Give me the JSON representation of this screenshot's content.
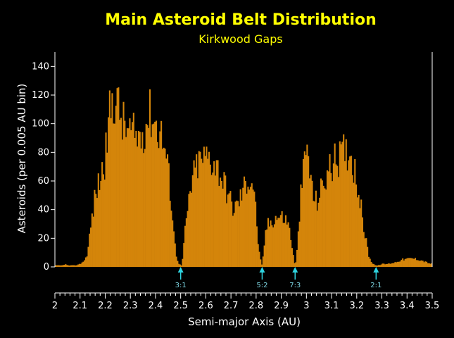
{
  "colors": {
    "background": "#000000",
    "bar": "#d4850a",
    "axis": "#ffffff",
    "title": "#ffff00",
    "gap_marker": "#2fd4e0"
  },
  "chart_data": {
    "type": "bar",
    "title": "Main Asteroid Belt Distribution",
    "subtitle": "Kirkwood Gaps",
    "xlabel": "Semi-major Axis (AU)",
    "ylabel": "Asteroids (per 0.005 AU bin)",
    "xlim": [
      2.0,
      3.5
    ],
    "ylim": [
      0,
      150
    ],
    "bin_width": 0.005,
    "grid": false,
    "x_ticks": [
      "2",
      "2.1",
      "2.2",
      "2.3",
      "2.4",
      "2.5",
      "2.6",
      "2.7",
      "2.8",
      "2.9",
      "3",
      "3.1",
      "3.2",
      "3.3",
      "3.4",
      "3.5"
    ],
    "y_ticks": [
      "0",
      "20",
      "40",
      "60",
      "80",
      "100",
      "120",
      "140"
    ],
    "profile": [
      [
        2.0,
        1
      ],
      [
        2.03,
        1
      ],
      [
        2.04,
        2
      ],
      [
        2.05,
        1
      ],
      [
        2.08,
        1
      ],
      [
        2.1,
        2
      ],
      [
        2.12,
        5
      ],
      [
        2.13,
        10
      ],
      [
        2.14,
        25
      ],
      [
        2.16,
        50
      ],
      [
        2.18,
        62
      ],
      [
        2.2,
        75
      ],
      [
        2.21,
        95
      ],
      [
        2.22,
        110
      ],
      [
        2.235,
        120
      ],
      [
        2.25,
        112
      ],
      [
        2.27,
        100
      ],
      [
        2.29,
        95
      ],
      [
        2.31,
        92
      ],
      [
        2.33,
        90
      ],
      [
        2.35,
        95
      ],
      [
        2.37,
        105
      ],
      [
        2.385,
        108
      ],
      [
        2.4,
        100
      ],
      [
        2.42,
        95
      ],
      [
        2.44,
        80
      ],
      [
        2.455,
        60
      ],
      [
        2.47,
        30
      ],
      [
        2.48,
        10
      ],
      [
        2.49,
        3
      ],
      [
        2.5,
        1
      ],
      [
        2.505,
        1
      ],
      [
        2.51,
        10
      ],
      [
        2.52,
        30
      ],
      [
        2.54,
        55
      ],
      [
        2.56,
        70
      ],
      [
        2.58,
        75
      ],
      [
        2.61,
        77
      ],
      [
        2.64,
        72
      ],
      [
        2.67,
        60
      ],
      [
        2.69,
        50
      ],
      [
        2.71,
        40
      ],
      [
        2.73,
        45
      ],
      [
        2.75,
        55
      ],
      [
        2.77,
        62
      ],
      [
        2.79,
        58
      ],
      [
        2.8,
        35
      ],
      [
        2.81,
        12
      ],
      [
        2.82,
        2
      ],
      [
        2.825,
        1
      ],
      [
        2.83,
        12
      ],
      [
        2.84,
        28
      ],
      [
        2.86,
        32
      ],
      [
        2.88,
        35
      ],
      [
        2.9,
        35
      ],
      [
        2.92,
        33
      ],
      [
        2.935,
        25
      ],
      [
        2.945,
        10
      ],
      [
        2.952,
        3
      ],
      [
        2.958,
        3
      ],
      [
        2.965,
        15
      ],
      [
        2.975,
        45
      ],
      [
        2.99,
        70
      ],
      [
        3.0,
        85
      ],
      [
        3.01,
        72
      ],
      [
        3.025,
        50
      ],
      [
        3.04,
        45
      ],
      [
        3.06,
        55
      ],
      [
        3.09,
        68
      ],
      [
        3.12,
        75
      ],
      [
        3.15,
        80
      ],
      [
        3.17,
        82
      ],
      [
        3.19,
        70
      ],
      [
        3.21,
        50
      ],
      [
        3.225,
        30
      ],
      [
        3.24,
        15
      ],
      [
        3.25,
        6
      ],
      [
        3.26,
        3
      ],
      [
        3.275,
        1
      ],
      [
        3.285,
        1
      ],
      [
        3.3,
        2
      ],
      [
        3.32,
        2
      ],
      [
        3.35,
        3
      ],
      [
        3.38,
        5
      ],
      [
        3.42,
        6
      ],
      [
        3.45,
        5
      ],
      [
        3.48,
        3
      ],
      [
        3.5,
        2
      ]
    ],
    "gaps": [
      {
        "label": "3:1",
        "x": 2.5
      },
      {
        "label": "5:2",
        "x": 2.824
      },
      {
        "label": "7:3",
        "x": 2.955
      },
      {
        "label": "2:1",
        "x": 3.277
      }
    ]
  }
}
